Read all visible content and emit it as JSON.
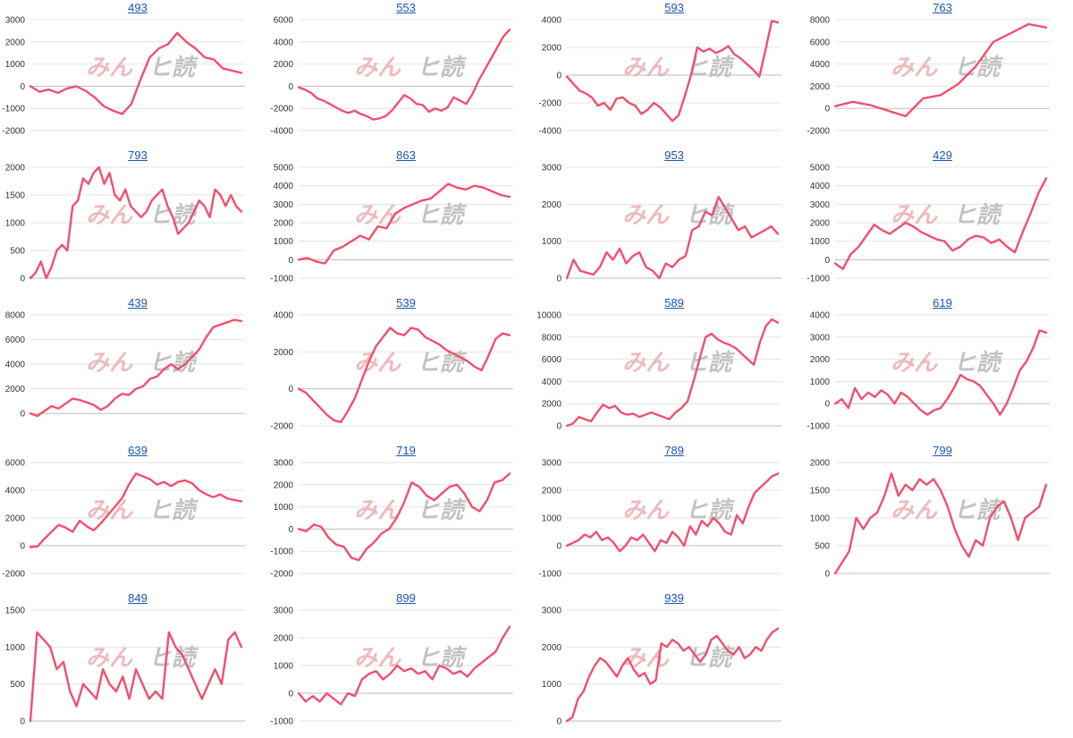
{
  "watermark": {
    "left": "みん",
    "right": "ヒ読",
    "colors": {
      "left": "#e9a3a8",
      "right": "#b9b9b9"
    }
  },
  "colors": {
    "line": "#f0506e",
    "link": "#1a55b5",
    "grid": "#e3e3e3"
  },
  "chart_data": [
    {
      "type": "line",
      "title": "493",
      "yticks": [
        -2000,
        -1000,
        0,
        1000,
        2000,
        3000
      ],
      "ylim": [
        -2000,
        3000
      ],
      "values": [
        0,
        -250,
        -150,
        -300,
        -100,
        0,
        -200,
        -500,
        -900,
        -1100,
        -1250,
        -800,
        300,
        1300,
        1700,
        1900,
        2400,
        2000,
        1700,
        1300,
        1200,
        800,
        700,
        600
      ]
    },
    {
      "type": "line",
      "title": "553",
      "yticks": [
        -4000,
        -2000,
        0,
        2000,
        4000,
        6000
      ],
      "ylim": [
        -4000,
        6000
      ],
      "values": [
        -100,
        -300,
        -600,
        -1100,
        -1300,
        -1600,
        -1900,
        -2200,
        -2400,
        -2200,
        -2500,
        -2700,
        -3000,
        -2900,
        -2700,
        -2200,
        -1500,
        -800,
        -1100,
        -1600,
        -1700,
        -2300,
        -2000,
        -2200,
        -1900,
        -1000,
        -1300,
        -1600,
        -700,
        500,
        1500,
        2500,
        3500,
        4500,
        5100
      ]
    },
    {
      "type": "line",
      "title": "593",
      "yticks": [
        -4000,
        -2000,
        0,
        2000,
        4000
      ],
      "ylim": [
        -4000,
        4000
      ],
      "values": [
        -100,
        -600,
        -1100,
        -1300,
        -1600,
        -2200,
        -2000,
        -2500,
        -1700,
        -1600,
        -2000,
        -2200,
        -2800,
        -2500,
        -2000,
        -2300,
        -2800,
        -3300,
        -2900,
        -1500,
        0,
        2000,
        1700,
        1900,
        1600,
        1800,
        2100,
        1500,
        1200,
        800,
        400,
        -100,
        1800,
        3900,
        3800
      ]
    },
    {
      "type": "line",
      "title": "763",
      "yticks": [
        -2000,
        0,
        2000,
        4000,
        6000,
        8000
      ],
      "ylim": [
        -2000,
        8000
      ],
      "values": [
        200,
        600,
        300,
        -200,
        -700,
        900,
        1200,
        2200,
        3800,
        6000,
        6800,
        7600,
        7300
      ]
    },
    {
      "type": "line",
      "title": "793",
      "yticks": [
        0,
        500,
        1000,
        1500,
        2000
      ],
      "ylim": [
        0,
        2000
      ],
      "values": [
        0,
        100,
        300,
        0,
        200,
        500,
        600,
        500,
        1300,
        1400,
        1800,
        1700,
        1900,
        2000,
        1700,
        1900,
        1500,
        1400,
        1600,
        1300,
        1200,
        1100,
        1200,
        1400,
        1500,
        1600,
        1300,
        1100,
        800,
        900,
        1000,
        1200,
        1400,
        1300,
        1100,
        1600,
        1500,
        1300,
        1500,
        1300,
        1200
      ]
    },
    {
      "type": "line",
      "title": "863",
      "yticks": [
        -1000,
        0,
        1000,
        2000,
        3000,
        4000,
        5000
      ],
      "ylim": [
        -1000,
        5000
      ],
      "values": [
        0,
        100,
        -100,
        -200,
        500,
        700,
        1000,
        1300,
        1100,
        1800,
        1700,
        2500,
        2800,
        3000,
        3200,
        3300,
        3700,
        4100,
        3900,
        3800,
        4000,
        3900,
        3700,
        3500,
        3400
      ]
    },
    {
      "type": "line",
      "title": "953",
      "yticks": [
        0,
        1000,
        2000,
        3000
      ],
      "ylim": [
        0,
        3000
      ],
      "values": [
        0,
        500,
        200,
        150,
        100,
        300,
        700,
        500,
        800,
        400,
        600,
        700,
        300,
        200,
        0,
        400,
        300,
        500,
        600,
        1300,
        1400,
        1800,
        1700,
        2200,
        1900,
        1600,
        1300,
        1400,
        1100,
        1200,
        1300,
        1400,
        1200
      ]
    },
    {
      "type": "line",
      "title": "429",
      "yticks": [
        -1000,
        0,
        1000,
        2000,
        3000,
        4000,
        5000
      ],
      "ylim": [
        -1000,
        5000
      ],
      "values": [
        -200,
        -500,
        300,
        700,
        1300,
        1900,
        1600,
        1400,
        1700,
        2000,
        1800,
        1500,
        1300,
        1100,
        1000,
        500,
        700,
        1100,
        1300,
        1200,
        900,
        1100,
        700,
        400,
        1500,
        2500,
        3600,
        4400
      ]
    },
    {
      "type": "line",
      "title": "439",
      "yticks": [
        0,
        2000,
        4000,
        6000,
        8000
      ],
      "ylim": [
        -1000,
        8000
      ],
      "values": [
        0,
        -200,
        200,
        600,
        400,
        800,
        1200,
        1100,
        900,
        700,
        300,
        600,
        1200,
        1600,
        1500,
        2000,
        2200,
        2800,
        3000,
        3600,
        4000,
        3600,
        4000,
        4600,
        5200,
        6200,
        7000,
        7200,
        7400,
        7600,
        7500
      ]
    },
    {
      "type": "line",
      "title": "539",
      "yticks": [
        -2000,
        0,
        2000,
        4000
      ],
      "ylim": [
        -2000,
        4000
      ],
      "values": [
        0,
        -200,
        -600,
        -1000,
        -1400,
        -1700,
        -1800,
        -1200,
        -500,
        500,
        1500,
        2300,
        2800,
        3300,
        3000,
        2900,
        3300,
        3200,
        2800,
        2600,
        2400,
        2100,
        1900,
        1700,
        1500,
        1200,
        1000,
        1800,
        2700,
        3000,
        2900
      ]
    },
    {
      "type": "line",
      "title": "589",
      "yticks": [
        0,
        2000,
        4000,
        6000,
        8000,
        10000
      ],
      "ylim": [
        0,
        10000
      ],
      "values": [
        0,
        200,
        800,
        600,
        400,
        1200,
        1900,
        1600,
        1800,
        1200,
        1000,
        1100,
        800,
        1000,
        1200,
        1000,
        800,
        600,
        1200,
        1600,
        2200,
        4000,
        6000,
        8000,
        8300,
        7800,
        7500,
        7300,
        7000,
        6500,
        6000,
        5500,
        7500,
        9000,
        9600,
        9300
      ]
    },
    {
      "type": "line",
      "title": "619",
      "yticks": [
        -1000,
        0,
        1000,
        2000,
        3000,
        4000
      ],
      "ylim": [
        -1000,
        4000
      ],
      "values": [
        0,
        200,
        -200,
        700,
        200,
        500,
        300,
        600,
        400,
        0,
        500,
        300,
        0,
        -300,
        -500,
        -300,
        -200,
        200,
        700,
        1300,
        1100,
        1000,
        800,
        400,
        0,
        -500,
        0,
        700,
        1500,
        1900,
        2500,
        3300,
        3200
      ]
    },
    {
      "type": "line",
      "title": "639",
      "yticks": [
        -2000,
        0,
        2000,
        4000,
        6000
      ],
      "ylim": [
        -2000,
        6000
      ],
      "values": [
        -100,
        -50,
        500,
        1000,
        1500,
        1300,
        1000,
        1800,
        1400,
        1100,
        1600,
        2200,
        2800,
        3400,
        4400,
        5200,
        5000,
        4800,
        4400,
        4600,
        4300,
        4600,
        4700,
        4500,
        4000,
        3700,
        3500,
        3700,
        3400,
        3300,
        3200
      ]
    },
    {
      "type": "line",
      "title": "719",
      "yticks": [
        -2000,
        -1000,
        0,
        1000,
        2000,
        3000
      ],
      "ylim": [
        -2000,
        3000
      ],
      "values": [
        0,
        -100,
        200,
        100,
        -400,
        -700,
        -800,
        -1300,
        -1400,
        -900,
        -600,
        -200,
        0,
        500,
        1200,
        2100,
        1900,
        1500,
        1300,
        1600,
        1900,
        2000,
        1600,
        1000,
        800,
        1300,
        2100,
        2200,
        2500
      ]
    },
    {
      "type": "line",
      "title": "789",
      "yticks": [
        -1000,
        0,
        1000,
        2000,
        3000
      ],
      "ylim": [
        -1000,
        3000
      ],
      "values": [
        0,
        100,
        200,
        400,
        300,
        500,
        200,
        300,
        100,
        -200,
        0,
        300,
        200,
        400,
        100,
        -200,
        200,
        100,
        500,
        300,
        0,
        700,
        400,
        900,
        700,
        1000,
        800,
        500,
        400,
        1100,
        800,
        1400,
        1900,
        2100,
        2300,
        2500,
        2600
      ]
    },
    {
      "type": "line",
      "title": "799",
      "yticks": [
        0,
        500,
        1000,
        1500,
        2000
      ],
      "ylim": [
        0,
        2000
      ],
      "values": [
        0,
        200,
        400,
        1000,
        800,
        1000,
        1100,
        1400,
        1800,
        1400,
        1600,
        1500,
        1700,
        1600,
        1700,
        1500,
        1200,
        800,
        500,
        300,
        600,
        500,
        1000,
        1200,
        1300,
        1000,
        600,
        1000,
        1100,
        1200,
        1600
      ]
    },
    {
      "type": "line",
      "title": "849",
      "yticks": [
        0,
        500,
        1000,
        1500
      ],
      "ylim": [
        0,
        1500
      ],
      "values": [
        0,
        1200,
        1100,
        1000,
        700,
        800,
        400,
        200,
        500,
        400,
        300,
        700,
        500,
        400,
        600,
        300,
        700,
        500,
        300,
        400,
        300,
        1200,
        1000,
        900,
        700,
        500,
        300,
        500,
        700,
        500,
        1100,
        1200,
        1000
      ]
    },
    {
      "type": "line",
      "title": "899",
      "yticks": [
        -1000,
        0,
        1000,
        2000,
        3000
      ],
      "ylim": [
        -1000,
        3000
      ],
      "values": [
        0,
        -300,
        -100,
        -300,
        0,
        -200,
        -400,
        0,
        -100,
        500,
        700,
        800,
        500,
        700,
        1000,
        800,
        900,
        700,
        800,
        500,
        1000,
        900,
        700,
        800,
        600,
        900,
        1100,
        1300,
        1500,
        2000,
        2400
      ]
    },
    {
      "type": "line",
      "title": "939",
      "yticks": [
        0,
        1000,
        2000,
        3000
      ],
      "ylim": [
        0,
        3000
      ],
      "values": [
        0,
        100,
        600,
        800,
        1200,
        1500,
        1700,
        1600,
        1400,
        1200,
        1500,
        1700,
        1400,
        1200,
        1300,
        1000,
        1100,
        2100,
        2000,
        2200,
        2100,
        1900,
        2000,
        1800,
        1600,
        1800,
        2200,
        2300,
        2100,
        1900,
        1800,
        2000,
        1700,
        1800,
        2000,
        1900,
        2200,
        2400,
        2500
      ]
    }
  ]
}
